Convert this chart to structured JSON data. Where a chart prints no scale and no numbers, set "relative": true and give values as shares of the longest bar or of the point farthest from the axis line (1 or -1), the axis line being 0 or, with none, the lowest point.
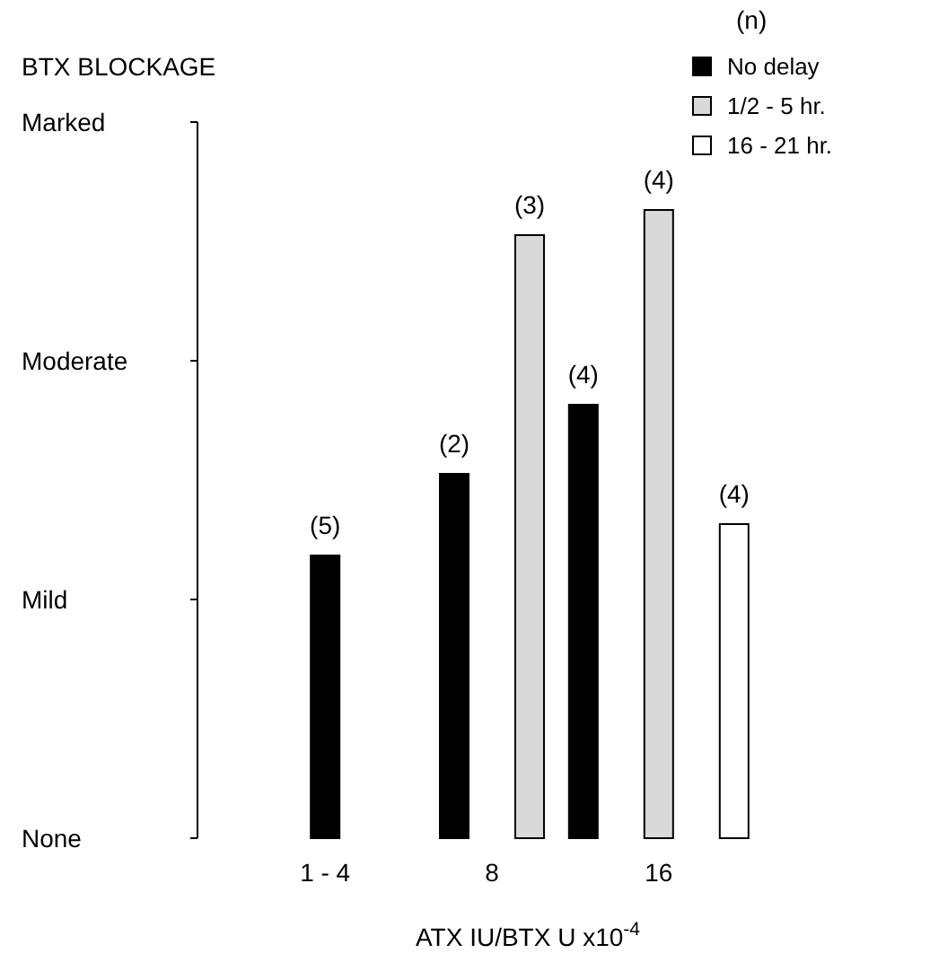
{
  "chart_data": {
    "type": "bar",
    "title": "BTX BLOCKAGE",
    "xlabel": "ATX IU/BTX U  x10$^{-4}$",
    "legend_title": "(n)",
    "legend": "top right",
    "relative": true,
    "categories": [
      "1 - 4",
      "8",
      "16"
    ],
    "annotations": [
      "Marked",
      "Moderate",
      "Mild",
      "None",
      "(5)",
      "(2)",
      "(3)",
      "(4)",
      "(4)",
      "(4)"
    ],
    "series": [
      {
        "name": "No delay",
        "color": "#000000",
        "values": [
          0.45,
          0.58,
          0.69
        ]
      },
      {
        "name": "1/2 - 5 hr.",
        "color": "#d9d9d9",
        "values": [
          null,
          0.96,
          1
        ]
      },
      {
        "name": "16 - 21 hr.",
        "color": "#ffffff",
        "values": [
          null,
          null,
          0.5
        ]
      }
    ]
  }
}
